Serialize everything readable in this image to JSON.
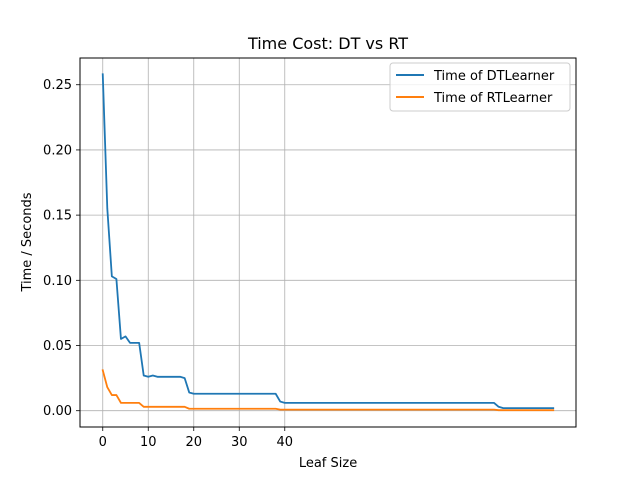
{
  "chart_data": {
    "type": "line",
    "title": "Time Cost: DT vs RT",
    "xlabel": "Leaf Size",
    "ylabel": "Time / Seconds",
    "xlim": [
      -5,
      104
    ],
    "ylim": [
      -0.0125,
      0.2705
    ],
    "xticks": [
      0,
      10,
      20,
      30,
      40
    ],
    "xtick_labels": [
      "0",
      "10",
      "20",
      "30",
      "40"
    ],
    "yticks": [
      0.0,
      0.05,
      0.1,
      0.15,
      0.2,
      0.25
    ],
    "ytick_labels": [
      "0.00",
      "0.05",
      "0.10",
      "0.15",
      "0.20",
      "0.25"
    ],
    "grid": true,
    "legend_position": "top-right",
    "series": [
      {
        "name": "Time of DTLearner",
        "color": "#1f77b4",
        "x": [
          0,
          1,
          2,
          3,
          4,
          5,
          6,
          7,
          8,
          9,
          10,
          11,
          12,
          13,
          14,
          15,
          16,
          17,
          18,
          19,
          20,
          21,
          22,
          23,
          24,
          25,
          26,
          27,
          28,
          29,
          30,
          31,
          32,
          33,
          34,
          35,
          36,
          37,
          38,
          39,
          40,
          41,
          42,
          43,
          44,
          45,
          46,
          47,
          48,
          49,
          50,
          51,
          52,
          53,
          54,
          55,
          56,
          57,
          58,
          59,
          60,
          61,
          62,
          63,
          64,
          65,
          66,
          67,
          68,
          69,
          70,
          71,
          72,
          73,
          74,
          75,
          76,
          77,
          78,
          79,
          80,
          81,
          82,
          83,
          84,
          85,
          86,
          87,
          88,
          89,
          90,
          91,
          92,
          93,
          94,
          95,
          96,
          97,
          98,
          99
        ],
        "values": [
          0.258,
          0.155,
          0.103,
          0.101,
          0.055,
          0.057,
          0.052,
          0.052,
          0.052,
          0.027,
          0.026,
          0.027,
          0.026,
          0.026,
          0.026,
          0.026,
          0.026,
          0.026,
          0.025,
          0.014,
          0.013,
          0.013,
          0.013,
          0.013,
          0.013,
          0.013,
          0.013,
          0.013,
          0.013,
          0.013,
          0.013,
          0.013,
          0.013,
          0.013,
          0.013,
          0.013,
          0.013,
          0.013,
          0.013,
          0.007,
          0.006,
          0.006,
          0.006,
          0.006,
          0.006,
          0.006,
          0.006,
          0.006,
          0.006,
          0.006,
          0.006,
          0.006,
          0.006,
          0.006,
          0.006,
          0.006,
          0.006,
          0.006,
          0.006,
          0.006,
          0.006,
          0.006,
          0.006,
          0.006,
          0.006,
          0.006,
          0.006,
          0.006,
          0.006,
          0.006,
          0.006,
          0.006,
          0.006,
          0.006,
          0.006,
          0.006,
          0.006,
          0.006,
          0.006,
          0.006,
          0.006,
          0.006,
          0.006,
          0.006,
          0.006,
          0.006,
          0.006,
          0.003,
          0.002,
          0.002,
          0.002,
          0.002,
          0.002,
          0.002,
          0.002,
          0.002,
          0.002,
          0.002,
          0.002,
          0.002
        ]
      },
      {
        "name": "Time of RTLearner",
        "color": "#ff7f0e",
        "x": [
          0,
          1,
          2,
          3,
          4,
          5,
          6,
          7,
          8,
          9,
          10,
          11,
          12,
          13,
          14,
          15,
          16,
          17,
          18,
          19,
          20,
          21,
          22,
          23,
          24,
          25,
          26,
          27,
          28,
          29,
          30,
          31,
          32,
          33,
          34,
          35,
          36,
          37,
          38,
          39,
          40,
          41,
          42,
          43,
          44,
          45,
          46,
          47,
          48,
          49,
          50,
          51,
          52,
          53,
          54,
          55,
          56,
          57,
          58,
          59,
          60,
          61,
          62,
          63,
          64,
          65,
          66,
          67,
          68,
          69,
          70,
          71,
          72,
          73,
          74,
          75,
          76,
          77,
          78,
          79,
          80,
          81,
          82,
          83,
          84,
          85,
          86,
          87,
          88,
          89,
          90,
          91,
          92,
          93,
          94,
          95,
          96,
          97,
          98,
          99
        ],
        "values": [
          0.031,
          0.018,
          0.012,
          0.012,
          0.006,
          0.006,
          0.006,
          0.006,
          0.006,
          0.003,
          0.003,
          0.003,
          0.003,
          0.003,
          0.003,
          0.003,
          0.003,
          0.003,
          0.003,
          0.0015,
          0.0015,
          0.0015,
          0.0015,
          0.0015,
          0.0015,
          0.0015,
          0.0015,
          0.0015,
          0.0015,
          0.0015,
          0.0015,
          0.0015,
          0.0015,
          0.0015,
          0.0015,
          0.0015,
          0.0015,
          0.0015,
          0.0015,
          0.0008,
          0.0008,
          0.0008,
          0.0008,
          0.0008,
          0.0008,
          0.0008,
          0.0008,
          0.0008,
          0.0008,
          0.0008,
          0.0008,
          0.0008,
          0.0008,
          0.0008,
          0.0008,
          0.0008,
          0.0008,
          0.0008,
          0.0008,
          0.0008,
          0.0008,
          0.0008,
          0.0008,
          0.0008,
          0.0008,
          0.0008,
          0.0008,
          0.0008,
          0.0008,
          0.0008,
          0.0008,
          0.0008,
          0.0008,
          0.0008,
          0.0008,
          0.0008,
          0.0008,
          0.0008,
          0.0008,
          0.0008,
          0.0008,
          0.0008,
          0.0008,
          0.0008,
          0.0008,
          0.0008,
          0.0008,
          0.0004,
          0.0004,
          0.0004,
          0.0004,
          0.0004,
          0.0004,
          0.0004,
          0.0004,
          0.0004,
          0.0004,
          0.0004,
          0.0004,
          0.0004
        ]
      }
    ]
  }
}
